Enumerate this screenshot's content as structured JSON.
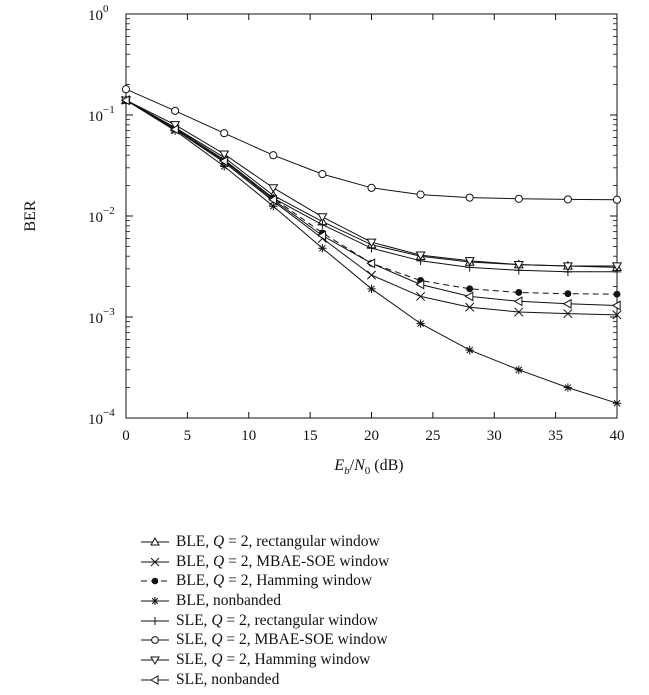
{
  "chart_data": {
    "type": "line",
    "xlabel": "E_b/N_0 (dB)",
    "xlabel_parts": {
      "E": "E",
      "b": "b",
      "slash": "/",
      "N": "N",
      "zero": "0",
      "unit": " (dB)"
    },
    "ylabel": "BER",
    "xlim": [
      0,
      40
    ],
    "ylim": [
      0.0001,
      1
    ],
    "yscale": "log",
    "x_ticks": [
      "0",
      "5",
      "10",
      "15",
      "20",
      "25",
      "30",
      "35",
      "40"
    ],
    "y_ticks": [
      {
        "base": "10",
        "exp": "0",
        "value": 1
      },
      {
        "base": "10",
        "exp": "−1",
        "value": 0.1
      },
      {
        "base": "10",
        "exp": "−2",
        "value": 0.01
      },
      {
        "base": "10",
        "exp": "−3",
        "value": 0.001
      },
      {
        "base": "10",
        "exp": "−4",
        "value": 0.0001
      }
    ],
    "grid": false,
    "legend_position": "below",
    "series": [
      {
        "name": "BLE, Q = 2, rectangular window",
        "name_parts": [
          "BLE, ",
          "Q",
          " = 2, rectangular window"
        ],
        "marker": "triangle-up",
        "dash": "solid",
        "x": [
          0,
          4,
          8,
          12,
          16,
          20,
          24,
          28,
          32,
          36,
          40
        ],
        "y": [
          0.14,
          0.075,
          0.038,
          0.016,
          0.0088,
          0.0052,
          0.004,
          0.0035,
          0.0033,
          0.0032,
          0.0031
        ]
      },
      {
        "name": "BLE, Q = 2, MBAE-SOE window",
        "name_parts": [
          "BLE, ",
          "Q",
          " = 2, MBAE-SOE window"
        ],
        "marker": "x",
        "dash": "solid",
        "x": [
          0,
          4,
          8,
          12,
          16,
          20,
          24,
          28,
          32,
          36,
          40
        ],
        "y": [
          0.14,
          0.072,
          0.034,
          0.014,
          0.006,
          0.0026,
          0.0016,
          0.00125,
          0.00112,
          0.00108,
          0.00105
        ]
      },
      {
        "name": "BLE, Q = 2, Hamming window",
        "name_parts": [
          "BLE, ",
          "Q",
          " = 2, Hamming window"
        ],
        "marker": "dot",
        "dash": "dashed",
        "x": [
          0,
          4,
          8,
          12,
          16,
          20,
          24,
          28,
          32,
          36,
          40
        ],
        "y": [
          0.14,
          0.073,
          0.035,
          0.015,
          0.0068,
          0.0034,
          0.0023,
          0.0019,
          0.00175,
          0.0017,
          0.00168
        ]
      },
      {
        "name": "BLE, nonbanded",
        "name_parts": [
          "BLE, nonbanded"
        ],
        "marker": "asterisk",
        "dash": "solid",
        "x": [
          0,
          4,
          8,
          12,
          16,
          20,
          24,
          28,
          32,
          36,
          40
        ],
        "y": [
          0.14,
          0.07,
          0.031,
          0.0125,
          0.0048,
          0.0019,
          0.00086,
          0.00047,
          0.0003,
          0.0002,
          0.00014
        ]
      },
      {
        "name": "SLE, Q = 2, rectangular window",
        "name_parts": [
          "SLE, ",
          "Q",
          " = 2, rectangular window"
        ],
        "marker": "plus",
        "dash": "solid",
        "x": [
          0,
          4,
          8,
          12,
          16,
          20,
          24,
          28,
          32,
          36,
          40
        ],
        "y": [
          0.14,
          0.074,
          0.036,
          0.015,
          0.0082,
          0.0048,
          0.0036,
          0.0031,
          0.0029,
          0.0028,
          0.0028
        ]
      },
      {
        "name": "SLE, Q = 2, MBAE-SOE window",
        "name_parts": [
          "SLE, ",
          "Q",
          " = 2, MBAE-SOE window"
        ],
        "marker": "circle",
        "dash": "solid",
        "x": [
          0,
          4,
          8,
          12,
          16,
          20,
          24,
          28,
          32,
          36,
          40
        ],
        "y": [
          0.18,
          0.11,
          0.066,
          0.04,
          0.026,
          0.019,
          0.0163,
          0.0152,
          0.0148,
          0.0146,
          0.0145
        ]
      },
      {
        "name": "SLE, Q = 2, Hamming window",
        "name_parts": [
          "SLE, ",
          "Q",
          " = 2, Hamming window"
        ],
        "marker": "triangle-down",
        "dash": "solid",
        "x": [
          0,
          4,
          8,
          12,
          16,
          20,
          24,
          28,
          32,
          36,
          40
        ],
        "y": [
          0.14,
          0.08,
          0.041,
          0.019,
          0.0098,
          0.0055,
          0.0041,
          0.0036,
          0.0033,
          0.0032,
          0.0032
        ]
      },
      {
        "name": "SLE, nonbanded",
        "name_parts": [
          "SLE, nonbanded"
        ],
        "marker": "triangle-left",
        "dash": "solid",
        "x": [
          0,
          4,
          8,
          12,
          16,
          20,
          24,
          28,
          32,
          36,
          40
        ],
        "y": [
          0.14,
          0.072,
          0.035,
          0.0145,
          0.0064,
          0.0034,
          0.0021,
          0.0016,
          0.00143,
          0.00135,
          0.0013
        ]
      }
    ]
  }
}
